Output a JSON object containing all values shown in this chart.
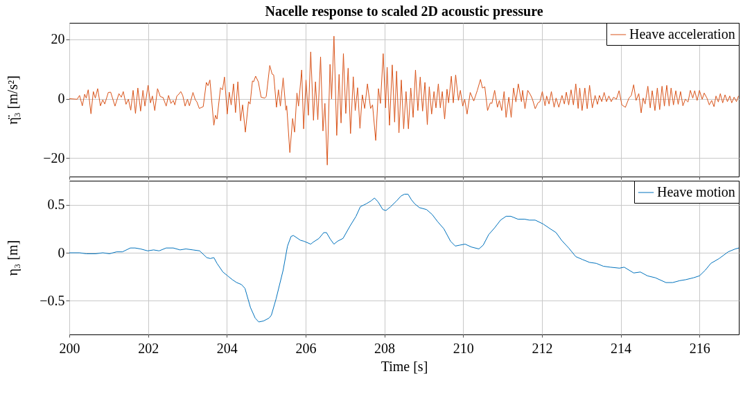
{
  "chart_data": [
    {
      "type": "line",
      "title": "Nacelle response to scaled 2D acoustic pressure",
      "ylabel": "η̈₃ [m/s²]",
      "xlim": [
        200,
        217
      ],
      "xticks": [
        200,
        202,
        204,
        206,
        208,
        210,
        212,
        214,
        216
      ],
      "ylim": [
        -26.3,
        25.6
      ],
      "yticks": [
        -20,
        0,
        20
      ],
      "grid": true,
      "legend": "top right",
      "tick_labels": "y",
      "series": [
        {
          "name": "Heave acceleration",
          "color": "#d95319",
          "x": [
            200.0,
            200.2,
            200.26,
            200.33,
            200.39,
            200.43,
            200.48,
            200.55,
            200.61,
            200.66,
            200.72,
            200.79,
            200.85,
            200.9,
            200.99,
            201.05,
            201.16,
            201.26,
            201.32,
            201.37,
            201.44,
            201.5,
            201.56,
            201.62,
            201.68,
            201.74,
            201.81,
            201.87,
            201.92,
            202.0,
            202.06,
            202.11,
            202.17,
            202.24,
            202.31,
            202.38,
            202.46,
            202.52,
            202.58,
            202.64,
            202.68,
            202.73,
            202.78,
            202.83,
            202.88,
            202.94,
            203.0,
            203.05,
            203.14,
            203.2,
            203.24,
            203.3,
            203.4,
            203.48,
            203.52,
            203.57,
            203.67,
            203.71,
            203.75,
            203.84,
            203.89,
            203.94,
            204.01,
            204.06,
            204.11,
            204.17,
            204.22,
            204.28,
            204.35,
            204.4,
            204.47,
            204.55,
            204.59,
            204.65,
            204.68,
            204.73,
            204.8,
            204.87,
            204.96,
            205.0,
            205.09,
            205.15,
            205.19,
            205.26,
            205.31,
            205.36,
            205.43,
            205.5,
            205.52,
            205.6,
            205.67,
            205.72,
            205.78,
            205.82,
            205.9,
            205.95,
            206.01,
            206.07,
            206.13,
            206.2,
            206.25,
            206.31,
            206.38,
            206.44,
            206.49,
            206.55,
            206.62,
            206.66,
            206.72,
            206.79,
            206.85,
            206.9,
            206.96,
            207.02,
            207.08,
            207.14,
            207.21,
            207.26,
            207.32,
            207.38,
            207.44,
            207.5,
            207.57,
            207.65,
            207.7,
            207.78,
            207.85,
            207.9,
            207.97,
            208.03,
            208.07,
            208.13,
            208.2,
            208.26,
            208.31,
            208.37,
            208.43,
            208.49,
            208.55,
            208.61,
            208.67,
            208.73,
            208.79,
            208.85,
            208.91,
            208.97,
            209.03,
            209.09,
            209.14,
            209.2,
            209.26,
            209.31,
            209.37,
            209.42,
            209.47,
            209.53,
            209.59,
            209.63,
            209.7,
            209.75,
            209.81,
            209.88,
            209.93,
            209.99,
            210.04,
            210.1,
            210.18,
            210.27,
            210.36,
            210.44,
            210.49,
            210.55,
            210.62,
            210.69,
            210.73,
            210.8,
            210.87,
            210.92,
            210.98,
            211.04,
            211.09,
            211.16,
            211.22,
            211.28,
            211.34,
            211.4,
            211.48,
            211.51,
            211.57,
            211.64,
            211.71,
            211.76,
            211.83,
            211.9,
            211.95,
            212.01,
            212.08,
            212.12,
            212.18,
            212.24,
            212.31,
            212.36,
            212.43,
            212.51,
            212.57,
            212.62,
            212.68,
            212.74,
            212.8,
            212.86,
            212.92,
            212.96,
            213.02,
            213.09,
            213.15,
            213.21,
            213.28,
            213.35,
            213.41,
            213.46,
            213.52,
            213.58,
            213.64,
            213.7,
            213.76,
            213.82,
            213.89,
            213.96,
            214.03,
            214.12,
            214.21,
            214.27,
            214.33,
            214.39,
            214.46,
            214.52,
            214.57,
            214.62,
            214.69,
            214.75,
            214.8,
            214.87,
            214.93,
            214.99,
            215.05,
            215.11,
            215.17,
            215.23,
            215.28,
            215.34,
            215.4,
            215.46,
            215.52,
            215.58,
            215.64,
            215.71,
            215.77,
            215.83,
            215.88,
            215.94,
            216.0,
            216.07,
            216.12,
            216.19,
            216.25,
            216.31,
            216.37,
            216.42,
            216.48,
            216.53,
            216.59,
            216.65,
            216.71,
            216.77,
            216.82,
            216.88,
            216.94,
            216.99
          ],
          "values": [
            0,
            -0.2,
            1.1,
            -2.4,
            1.5,
            0.2,
            3.0,
            -5.1,
            2.4,
            0.2,
            3.4,
            -2.4,
            -0.4,
            -1.8,
            2.1,
            2.2,
            -2.5,
            1.7,
            0.5,
            2.4,
            -1.9,
            -0.2,
            -3.9,
            2.8,
            -5.0,
            3.6,
            -4.2,
            2.8,
            -2.5,
            4.5,
            -1.4,
            0.9,
            -4.0,
            3.4,
            0.7,
            0.4,
            -2.5,
            1.1,
            -1.6,
            -0.6,
            -2.1,
            0.9,
            1.5,
            2.4,
            1.1,
            -2.5,
            -0.2,
            -2.4,
            2.1,
            -0.4,
            -1.1,
            -3.3,
            -2.7,
            5.5,
            4.4,
            6.3,
            -9.0,
            -5.6,
            -6.9,
            3.7,
            3.0,
            7.3,
            -5.2,
            2.2,
            -2.1,
            5.0,
            -4.7,
            5.7,
            -7.5,
            -2.1,
            -11.3,
            -1.0,
            -1.8,
            6.0,
            5.7,
            7.6,
            5.7,
            0.5,
            0.2,
            0.7,
            11.2,
            8.3,
            8.0,
            -2.9,
            3.0,
            -2.5,
            7.0,
            -3.9,
            -2.4,
            -18.2,
            -6.7,
            -11.3,
            1.9,
            -2.5,
            9.7,
            -10.2,
            6.3,
            -5.6,
            15.8,
            -7.3,
            5.7,
            -7.1,
            14.1,
            -10.9,
            -1.6,
            -22.4,
            11.6,
            -0.1,
            21.1,
            -12.4,
            8.2,
            -8.2,
            15.2,
            -5.0,
            10.3,
            -11.8,
            7.4,
            -4.0,
            3.7,
            -10.0,
            1.3,
            -3.3,
            5.0,
            -3.3,
            -2.1,
            -14.1,
            3.4,
            -1.6,
            15.2,
            -3.1,
            10.6,
            -9.0,
            11.4,
            -7.9,
            9.3,
            -11.5,
            6.3,
            -10.2,
            2.4,
            -10.2,
            3.6,
            -6.3,
            9.7,
            -4.0,
            7.3,
            -4.2,
            5.5,
            -8.8,
            4.0,
            -5.2,
            2.4,
            -3.1,
            5.0,
            -3.1,
            2.4,
            -6.9,
            3.2,
            -1.4,
            7.6,
            -1.4,
            8.0,
            -0.6,
            2.8,
            -2.5,
            -0.2,
            -5.2,
            2.1,
            -0.8,
            2.8,
            6.5,
            3.6,
            4.0,
            -4.0,
            -1.4,
            -1.6,
            2.8,
            -2.9,
            -0.6,
            -4.0,
            2.4,
            -6.3,
            0.5,
            -6.3,
            3.6,
            -1.1,
            5.0,
            -1.0,
            2.8,
            -3.4,
            2.8,
            1.3,
            -0.2,
            -3.4,
            -1.4,
            -1.0,
            2.4,
            -2.4,
            0.9,
            -1.8,
            2.4,
            -2.9,
            0.2,
            -2.9,
            1.1,
            -1.8,
            2.2,
            -2.1,
            3.0,
            -2.1,
            5.0,
            -3.3,
            3.6,
            -4.0,
            3.6,
            -3.4,
            4.5,
            -3.1,
            1.1,
            -1.9,
            1.1,
            -1.0,
            2.1,
            -1.0,
            0.9,
            -1.0,
            0.5,
            -0.2,
            2.7,
            -2.1,
            -2.9,
            0.2,
            1.1,
            4.7,
            -0.6,
            1.7,
            -4.8,
            0.2,
            -1.8,
            4.2,
            -3.1,
            2.7,
            -4.0,
            3.6,
            -3.7,
            4.2,
            -2.5,
            4.5,
            -2.5,
            3.6,
            -2.1,
            2.7,
            -1.9,
            2.4,
            -2.4,
            -0.2,
            -1.1,
            2.8,
            0.2,
            2.7,
            -0.6,
            2.8,
            -0.2,
            1.9,
            0.2,
            -2.1,
            -0.6,
            -2.7,
            0.9,
            -1.1,
            1.7,
            -1.4,
            1.3,
            -1.0,
            0.9,
            -1.4,
            0.5,
            -1.0,
            0.9
          ]
        }
      ]
    },
    {
      "type": "line",
      "xlabel": "Time [s]",
      "ylabel": "η₃ [m]",
      "xlim": [
        200,
        217
      ],
      "xticks": [
        200,
        202,
        204,
        206,
        208,
        210,
        212,
        214,
        216
      ],
      "ylim": [
        -0.85,
        0.75
      ],
      "yticks": [
        -0.5,
        0,
        0.5
      ],
      "grid": true,
      "legend": "top right",
      "series": [
        {
          "name": "Heave motion",
          "color": "#0072bd",
          "x": [
            200.0,
            200.26,
            200.43,
            200.67,
            200.85,
            201.02,
            201.2,
            201.35,
            201.55,
            201.67,
            201.81,
            201.99,
            202.14,
            202.28,
            202.46,
            202.64,
            202.81,
            202.96,
            203.14,
            203.31,
            203.49,
            203.58,
            203.67,
            203.75,
            203.9,
            204.02,
            204.14,
            204.25,
            204.37,
            204.46,
            204.6,
            204.72,
            204.81,
            204.93,
            205.07,
            205.13,
            205.25,
            205.43,
            205.54,
            205.63,
            205.69,
            205.87,
            205.96,
            206.13,
            206.19,
            206.34,
            206.46,
            206.53,
            206.63,
            206.72,
            206.81,
            206.95,
            207.13,
            207.28,
            207.39,
            207.54,
            207.66,
            207.75,
            207.84,
            207.96,
            208.04,
            208.16,
            208.31,
            208.42,
            208.51,
            208.6,
            208.69,
            208.77,
            208.89,
            209.07,
            209.21,
            209.36,
            209.51,
            209.68,
            209.8,
            209.92,
            210.05,
            210.21,
            210.4,
            210.51,
            210.65,
            210.8,
            210.95,
            211.09,
            211.21,
            211.39,
            211.56,
            211.68,
            211.83,
            212.03,
            212.21,
            212.36,
            212.5,
            212.68,
            212.86,
            213.03,
            213.21,
            213.38,
            213.56,
            213.74,
            213.97,
            214.09,
            214.33,
            214.5,
            214.68,
            214.88,
            215.15,
            215.32,
            215.5,
            215.65,
            215.85,
            216.0,
            216.15,
            216.29,
            216.5,
            216.73,
            216.91,
            217.0
          ],
          "values": [
            0,
            0,
            -0.01,
            -0.01,
            0,
            -0.01,
            0.01,
            0.01,
            0.05,
            0.05,
            0.04,
            0.02,
            0.03,
            0.02,
            0.05,
            0.05,
            0.03,
            0.04,
            0.03,
            0.02,
            -0.05,
            -0.06,
            -0.05,
            -0.11,
            -0.2,
            -0.24,
            -0.28,
            -0.31,
            -0.33,
            -0.37,
            -0.57,
            -0.68,
            -0.72,
            -0.71,
            -0.68,
            -0.65,
            -0.48,
            -0.18,
            0.07,
            0.17,
            0.18,
            0.13,
            0.12,
            0.09,
            0.11,
            0.15,
            0.21,
            0.21,
            0.14,
            0.09,
            0.12,
            0.15,
            0.28,
            0.38,
            0.48,
            0.51,
            0.54,
            0.57,
            0.53,
            0.45,
            0.44,
            0.48,
            0.54,
            0.59,
            0.61,
            0.61,
            0.55,
            0.51,
            0.47,
            0.45,
            0.4,
            0.32,
            0.25,
            0.12,
            0.07,
            0.08,
            0.09,
            0.06,
            0.04,
            0.08,
            0.19,
            0.26,
            0.34,
            0.38,
            0.38,
            0.35,
            0.35,
            0.34,
            0.34,
            0.3,
            0.25,
            0.21,
            0.13,
            0.05,
            -0.04,
            -0.07,
            -0.1,
            -0.11,
            -0.14,
            -0.15,
            -0.16,
            -0.15,
            -0.21,
            -0.2,
            -0.24,
            -0.26,
            -0.31,
            -0.31,
            -0.29,
            -0.28,
            -0.26,
            -0.24,
            -0.18,
            -0.11,
            -0.06,
            0.01,
            0.04,
            0.05
          ]
        }
      ]
    }
  ]
}
